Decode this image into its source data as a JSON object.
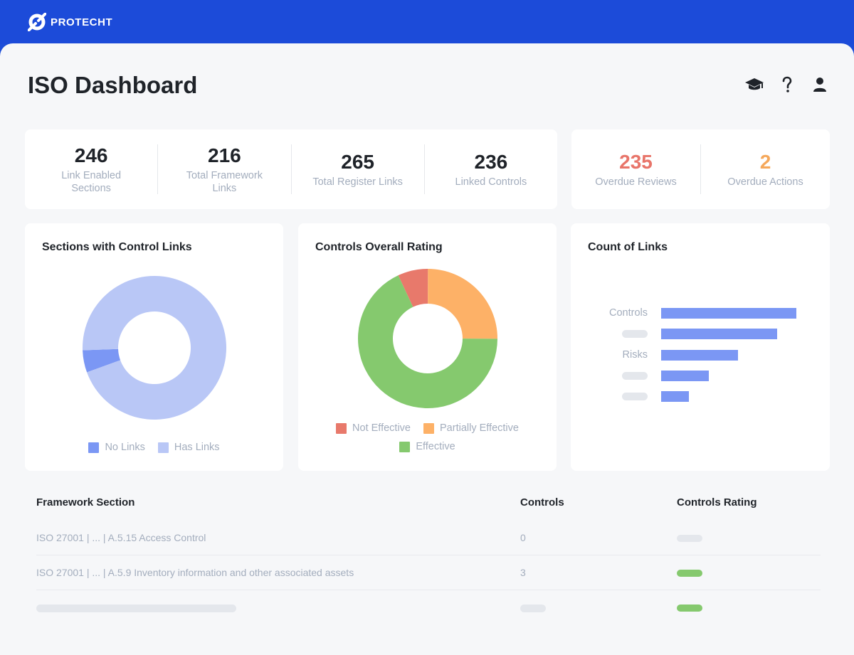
{
  "brand": {
    "name": "PROTECHT"
  },
  "page": {
    "title": "ISO Dashboard"
  },
  "header_icons": [
    "graduation-cap-icon",
    "help-icon",
    "user-icon"
  ],
  "kpis_primary": [
    {
      "value": "246",
      "label": "Link Enabled Sections"
    },
    {
      "value": "216",
      "label": "Total Framework Links"
    },
    {
      "value": "265",
      "label": "Total Register Links"
    },
    {
      "value": "236",
      "label": "Linked Controls"
    }
  ],
  "kpis_alerts": [
    {
      "value": "235",
      "label": "Overdue Reviews",
      "color": "#e8756a"
    },
    {
      "value": "2",
      "label": "Overdue Actions",
      "color": "#f5a85b"
    }
  ],
  "sections_chart": {
    "title": "Sections with Control Links",
    "chart_data": {
      "type": "pie",
      "categories": [
        "No Links",
        "Has Links"
      ],
      "values": [
        5,
        95
      ],
      "colors": [
        "#7b97f4",
        "#b9c7f6"
      ],
      "legend": "bottom"
    }
  },
  "rating_chart": {
    "title": "Controls Overall Rating",
    "chart_data": {
      "type": "pie",
      "categories": [
        "Not Effective",
        "Partially Effective",
        "Effective"
      ],
      "values": [
        7,
        25,
        68
      ],
      "colors": [
        "#e8796b",
        "#fdb167",
        "#85c96e"
      ],
      "legend": "bottom"
    }
  },
  "links_chart": {
    "title": "Count of Links",
    "chart_data": {
      "type": "bar",
      "orientation": "horizontal",
      "categories": [
        "Controls",
        "",
        "Risks",
        "",
        ""
      ],
      "values": [
        190,
        163,
        108,
        67,
        39
      ],
      "color": "#7b97f4"
    }
  },
  "table": {
    "headers": {
      "section": "Framework Section",
      "controls": "Controls",
      "rating": "Controls Rating"
    },
    "rows": [
      {
        "section": "ISO 27001  |  ...  |  A.5.15 Access Control",
        "controls": "0",
        "rating_color": "#e4e7ec"
      },
      {
        "section": "ISO 27001  |  ...  | A.5.9 Inventory information and other associated assets",
        "controls": "3",
        "rating_color": "#85c96e"
      }
    ],
    "placeholder_row": {
      "rating_color": "#85c96e"
    }
  }
}
